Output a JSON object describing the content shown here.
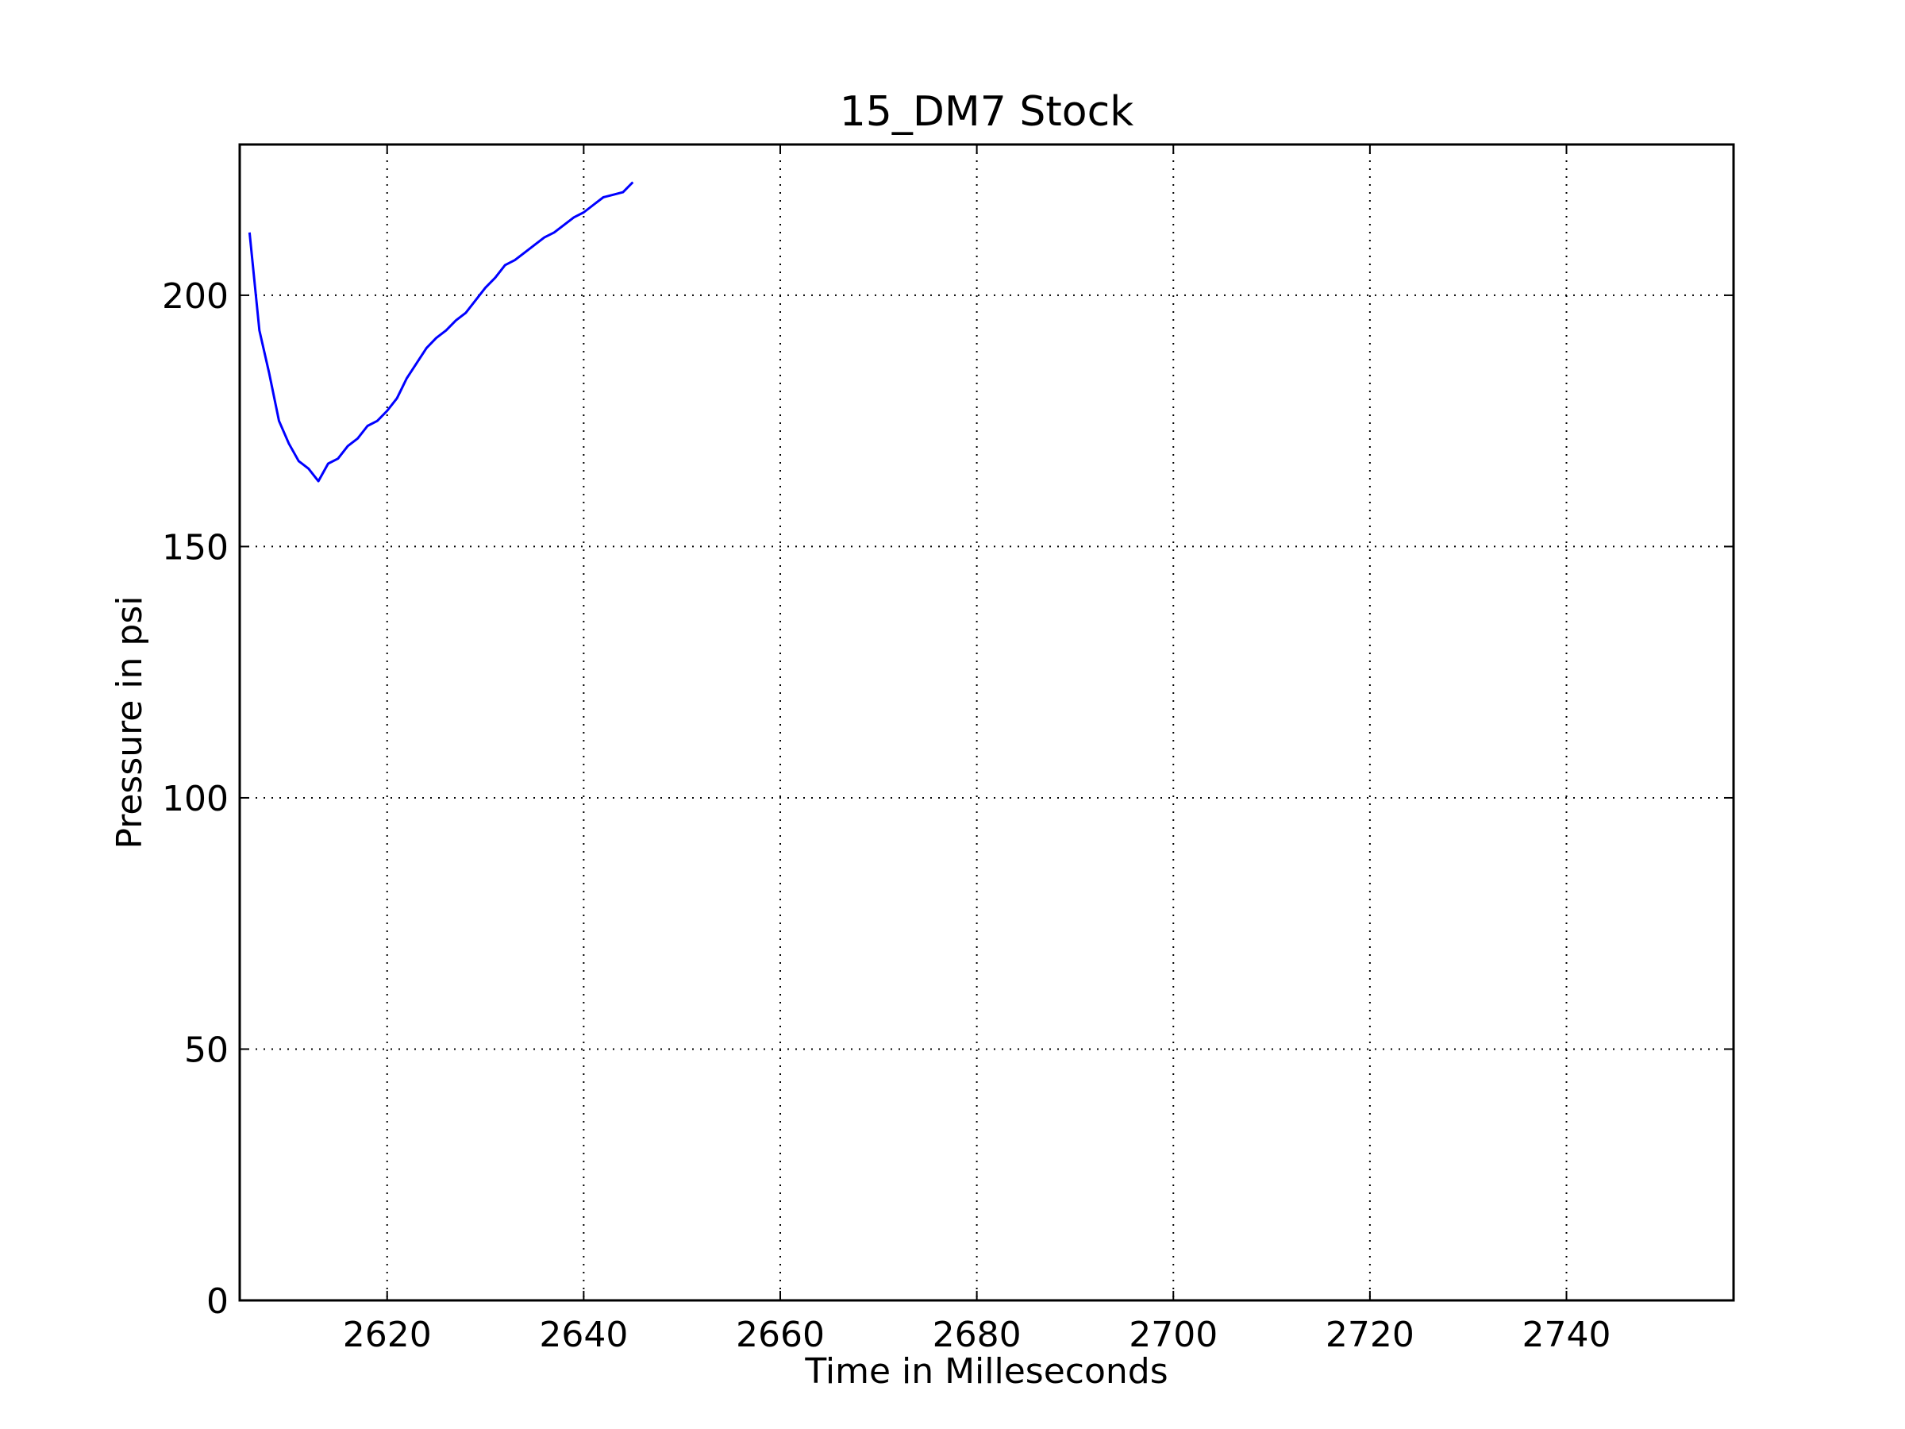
{
  "chart_data": {
    "type": "line",
    "title": "15_DM7 Stock",
    "xlabel": "Time in Milleseconds",
    "ylabel": "Pressure in psi",
    "xlim": [
      2605,
      2757
    ],
    "ylim": [
      0,
      230
    ],
    "xticks": [
      2620,
      2640,
      2660,
      2680,
      2700,
      2720,
      2740
    ],
    "yticks": [
      0,
      50,
      100,
      150,
      200
    ],
    "grid": true,
    "series": [
      {
        "color": "#0000ff",
        "x": [
          2606,
          2607,
          2608,
          2609,
          2610,
          2611,
          2612,
          2613,
          2614,
          2615,
          2616,
          2617,
          2618,
          2619,
          2620,
          2621,
          2622,
          2623,
          2624,
          2625,
          2626,
          2627,
          2628,
          2629,
          2630,
          2631,
          2632,
          2633,
          2634,
          2635,
          2636,
          2637,
          2638,
          2639,
          2640,
          2641,
          2642,
          2643,
          2644,
          2645
        ],
        "y": [
          212.5,
          193,
          184.5,
          175,
          170.5,
          167,
          165.5,
          163,
          166.5,
          167.5,
          170,
          171.5,
          174,
          175,
          177,
          179.5,
          183.5,
          186.5,
          189.5,
          191.5,
          193,
          195,
          196.5,
          199,
          201.5,
          203.5,
          206,
          207,
          208.5,
          210,
          211.5,
          212.5,
          214,
          215.5,
          216.5,
          218,
          219.5,
          220,
          220.5,
          222.5
        ]
      }
    ]
  }
}
